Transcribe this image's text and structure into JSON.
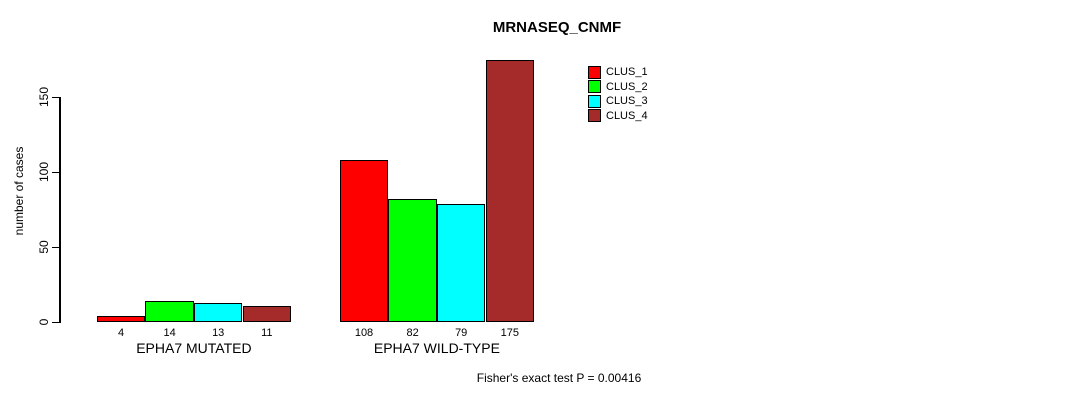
{
  "chart_data": {
    "type": "bar",
    "title": "MRNASEQ_CNMF",
    "ylabel": "number of cases",
    "footer": "Fisher's exact test P = 0.00416",
    "yticks": [
      0,
      50,
      100,
      150
    ],
    "ylim": [
      0,
      175
    ],
    "grid": false,
    "legend_position": "top-right",
    "bar_value_labels": true,
    "categories": [
      "EPHA7 MUTATED",
      "EPHA7 WILD-TYPE"
    ],
    "series": [
      {
        "name": "CLUS_1",
        "color": "#FF0000",
        "values": [
          4,
          108
        ]
      },
      {
        "name": "CLUS_2",
        "color": "#00FF00",
        "values": [
          14,
          82
        ]
      },
      {
        "name": "CLUS_3",
        "color": "#00FFFF",
        "values": [
          13,
          79
        ]
      },
      {
        "name": "CLUS_4",
        "color": "#A52A2A",
        "values": [
          11,
          175
        ]
      }
    ]
  }
}
